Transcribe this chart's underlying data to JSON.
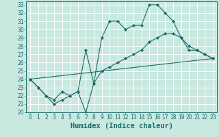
{
  "xlabel": "Humidex (Indice chaleur)",
  "bg_color": "#c8e8e0",
  "grid_color": "#ffffff",
  "line_color": "#1a6b6b",
  "xlim": [
    -0.5,
    23.5
  ],
  "ylim": [
    20,
    33.4
  ],
  "xticks": [
    0,
    1,
    2,
    3,
    4,
    5,
    6,
    7,
    8,
    9,
    10,
    11,
    12,
    13,
    14,
    15,
    16,
    17,
    18,
    19,
    20,
    21,
    22,
    23
  ],
  "yticks": [
    20,
    21,
    22,
    23,
    24,
    25,
    26,
    27,
    28,
    29,
    30,
    31,
    32,
    33
  ],
  "line1_x": [
    0,
    1,
    2,
    3,
    4,
    5,
    6,
    7,
    8,
    9,
    10,
    11,
    12,
    13,
    14,
    15,
    16,
    17,
    18,
    19,
    20,
    21,
    22,
    23
  ],
  "line1_y": [
    24.0,
    23.0,
    22.0,
    21.0,
    21.5,
    22.0,
    22.5,
    20.0,
    23.5,
    29.0,
    31.0,
    31.0,
    30.0,
    30.5,
    30.5,
    33.0,
    33.0,
    32.0,
    31.0,
    29.0,
    27.5,
    27.5,
    27.0,
    26.5
  ],
  "line2_x": [
    0,
    1,
    2,
    3,
    4,
    5,
    6,
    7,
    8,
    9,
    10,
    11,
    12,
    13,
    14,
    15,
    16,
    17,
    18,
    19,
    20,
    21,
    22,
    23
  ],
  "line2_y": [
    24.0,
    23.0,
    22.0,
    21.5,
    22.5,
    22.0,
    22.5,
    27.5,
    23.5,
    25.0,
    25.5,
    26.0,
    26.5,
    27.0,
    27.5,
    28.5,
    29.0,
    29.5,
    29.5,
    29.0,
    28.0,
    27.5,
    27.0,
    26.5
  ],
  "line3_x": [
    0,
    23
  ],
  "line3_y": [
    24.0,
    26.5
  ],
  "tick_fontsize": 5.5,
  "xlabel_fontsize": 7.5
}
